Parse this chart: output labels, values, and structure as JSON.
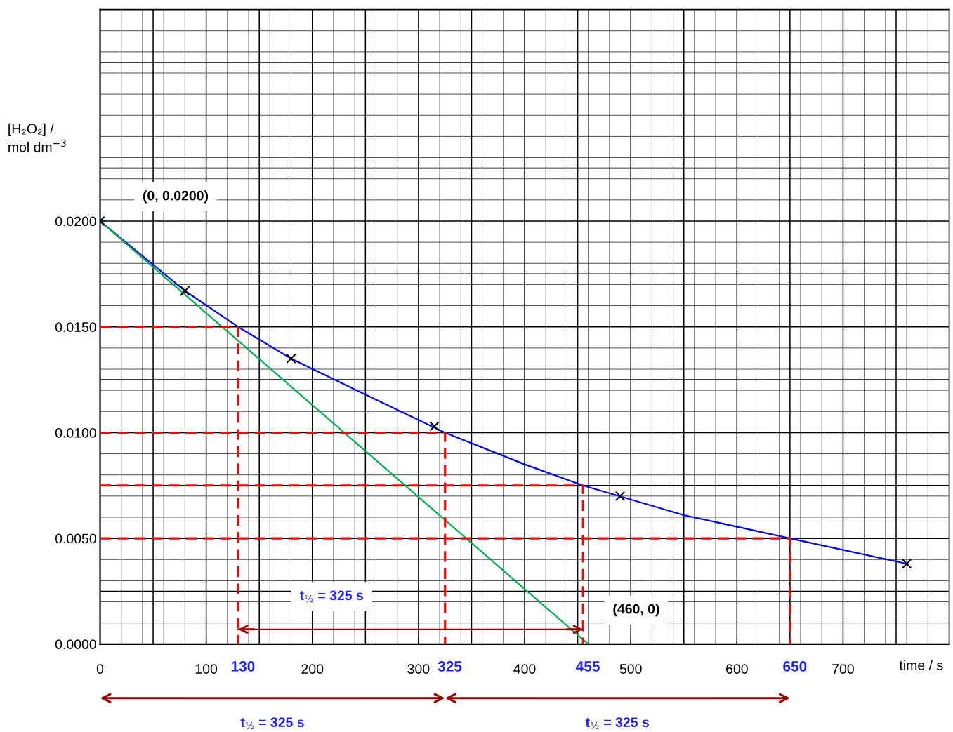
{
  "chart_data": {
    "type": "line",
    "xlabel": "time / s",
    "ylabel": "[H₂O₂] /\nmol dm$^{−3}$",
    "xlim": [
      0,
      800
    ],
    "ylim": [
      0,
      0.03
    ],
    "xticks": [
      0,
      100,
      200,
      300,
      400,
      500,
      600,
      700
    ],
    "yticks": [
      {
        "value": 0,
        "label": "0.0000"
      },
      {
        "value": 0.005,
        "label": "0.0050"
      },
      {
        "value": 0.01,
        "label": "0.0100"
      },
      {
        "value": 0.015,
        "label": "0.0150"
      },
      {
        "value": 0.02,
        "label": "0.0200"
      }
    ],
    "grid": true,
    "legend": false,
    "series": [
      {
        "type": "scatter",
        "marker": "cross",
        "color": "#000000",
        "x": [
          0,
          80,
          180,
          315,
          490,
          760
        ],
        "values": [
          0.02,
          0.0167,
          0.0135,
          0.0103,
          0.007,
          0.0038
        ]
      },
      {
        "color": "#0000ff",
        "x": [
          0,
          80,
          130,
          180,
          250,
          325,
          400,
          455,
          550,
          650,
          760
        ],
        "values": [
          0.02,
          0.0167,
          0.015,
          0.0135,
          0.0118,
          0.01,
          0.0085,
          0.0075,
          0.0061,
          0.005,
          0.0038
        ]
      },
      {
        "color": "#00b050",
        "x": [
          0,
          460
        ],
        "values": [
          0.02,
          0
        ]
      },
      {
        "type": "line",
        "line_style": "dashed",
        "color": "#ff0000",
        "x": [
          0,
          130,
          130
        ],
        "values": [
          0.015,
          0.015,
          0
        ]
      },
      {
        "type": "line",
        "line_style": "dashed",
        "color": "#ff0000",
        "x": [
          0,
          325,
          325
        ],
        "values": [
          0.01,
          0.01,
          0
        ]
      },
      {
        "type": "line",
        "line_style": "dashed",
        "color": "#ff0000",
        "x": [
          0,
          455,
          455
        ],
        "values": [
          0.0075,
          0.0075,
          0
        ]
      },
      {
        "type": "line",
        "line_style": "dashed",
        "color": "#ff0000",
        "x": [
          0,
          650,
          650
        ],
        "values": [
          0.005,
          0.005,
          0
        ]
      },
      {
        "type": "line",
        "color": "#990000",
        "x": [
          130,
          455
        ],
        "values": [
          0.0007,
          0.0007
        ]
      }
    ],
    "annotations": [
      "(0, 0.0200)",
      {
        "text": "(460, 0)",
        "x": 460,
        "y": 0
      },
      {
        "text": "130",
        "x": 130,
        "y": 0
      },
      {
        "text": "325",
        "x": 325,
        "y": 0
      },
      {
        "text": "455",
        "x": 455,
        "y": 0
      },
      {
        "text": "650",
        "x": 650,
        "y": 0
      },
      "t$_{½}$ = 325 s",
      "t$_{½}$ = 325 s",
      "t$_{½}$ = 325 s"
    ]
  }
}
